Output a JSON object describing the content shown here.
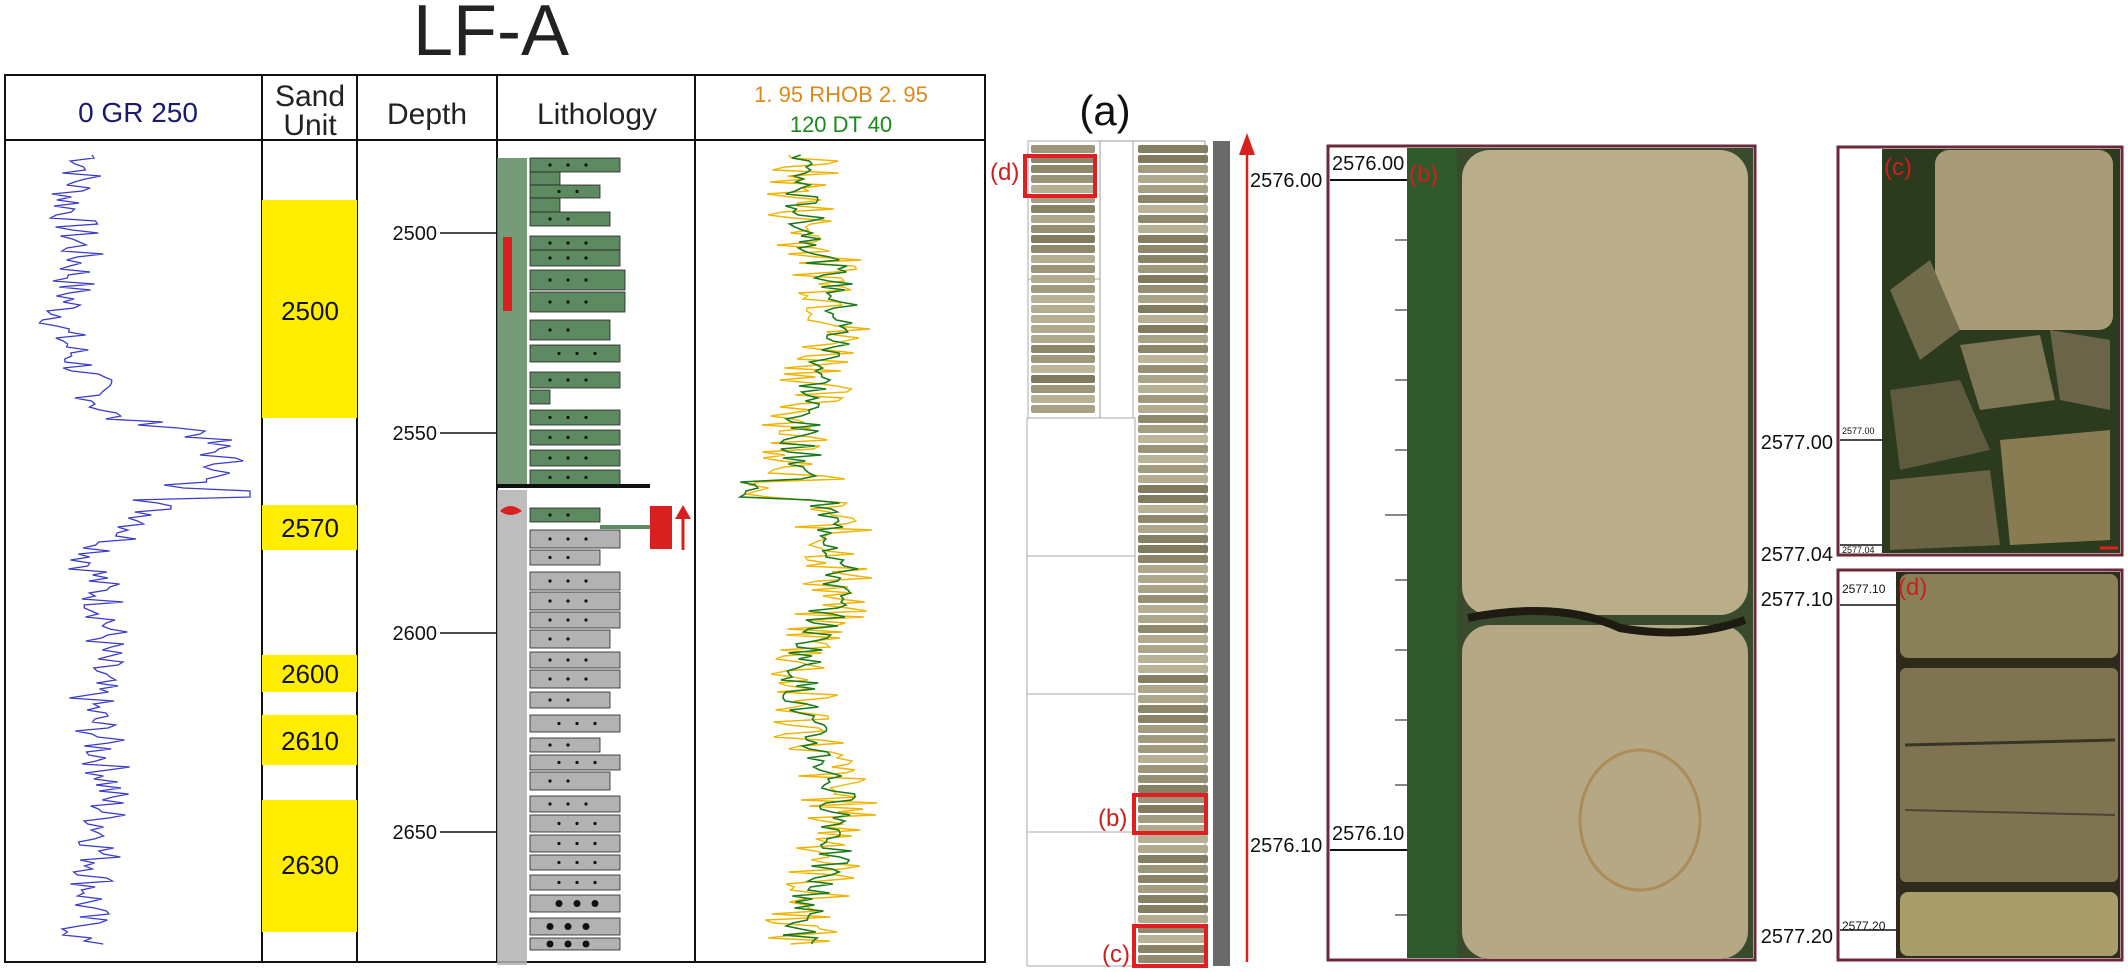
{
  "log": {
    "title": "LF-A",
    "gr_header": "0   GR   250",
    "sand_unit_header": [
      "Sand",
      "Unit"
    ],
    "depth_header": "Depth",
    "lithology_header": "Lithology",
    "rhob_header": "1. 95  RHOB  2. 95",
    "dt_header": "120       DT       40",
    "depth_ticks": [
      "2500",
      "2550",
      "2600",
      "2650"
    ],
    "sand_units": [
      "2500",
      "2570",
      "2600",
      "2610",
      "2630"
    ]
  },
  "core": {
    "panel_a_label": "(a)",
    "box_labels": [
      "(d)",
      "(b)",
      "(c)"
    ],
    "arrow_top_depth": "2576.00",
    "arrow_bottom_depth": "2576.10",
    "b_label": "(b)",
    "b_top": "2576.00",
    "b_bottom": "2576.10",
    "c_label": "(c)",
    "c_outside_top": "2577.00",
    "c_outside_bottom": "2577.04",
    "c_scale_top": "2577.00",
    "c_scale_bottom": "2577.04",
    "d_label": "(d)",
    "d_outside_top": "2577.10",
    "d_outside_bottom": "2577.20",
    "d_scale_top": "2577.10",
    "d_scale_bottom": "2577.20"
  },
  "colors": {
    "gr_curve": "#3a3acc",
    "sand_unit": "#ffee00",
    "sandstone": "#5e8a62",
    "mudstone": "#b2b2b2",
    "rhob": "#f0b400",
    "dt": "#1a7a1a",
    "marker": "#d92020",
    "rhob_label": "#d98a1a",
    "dt_label": "#1a8a1a",
    "gr_label": "#1a1a6e"
  }
}
